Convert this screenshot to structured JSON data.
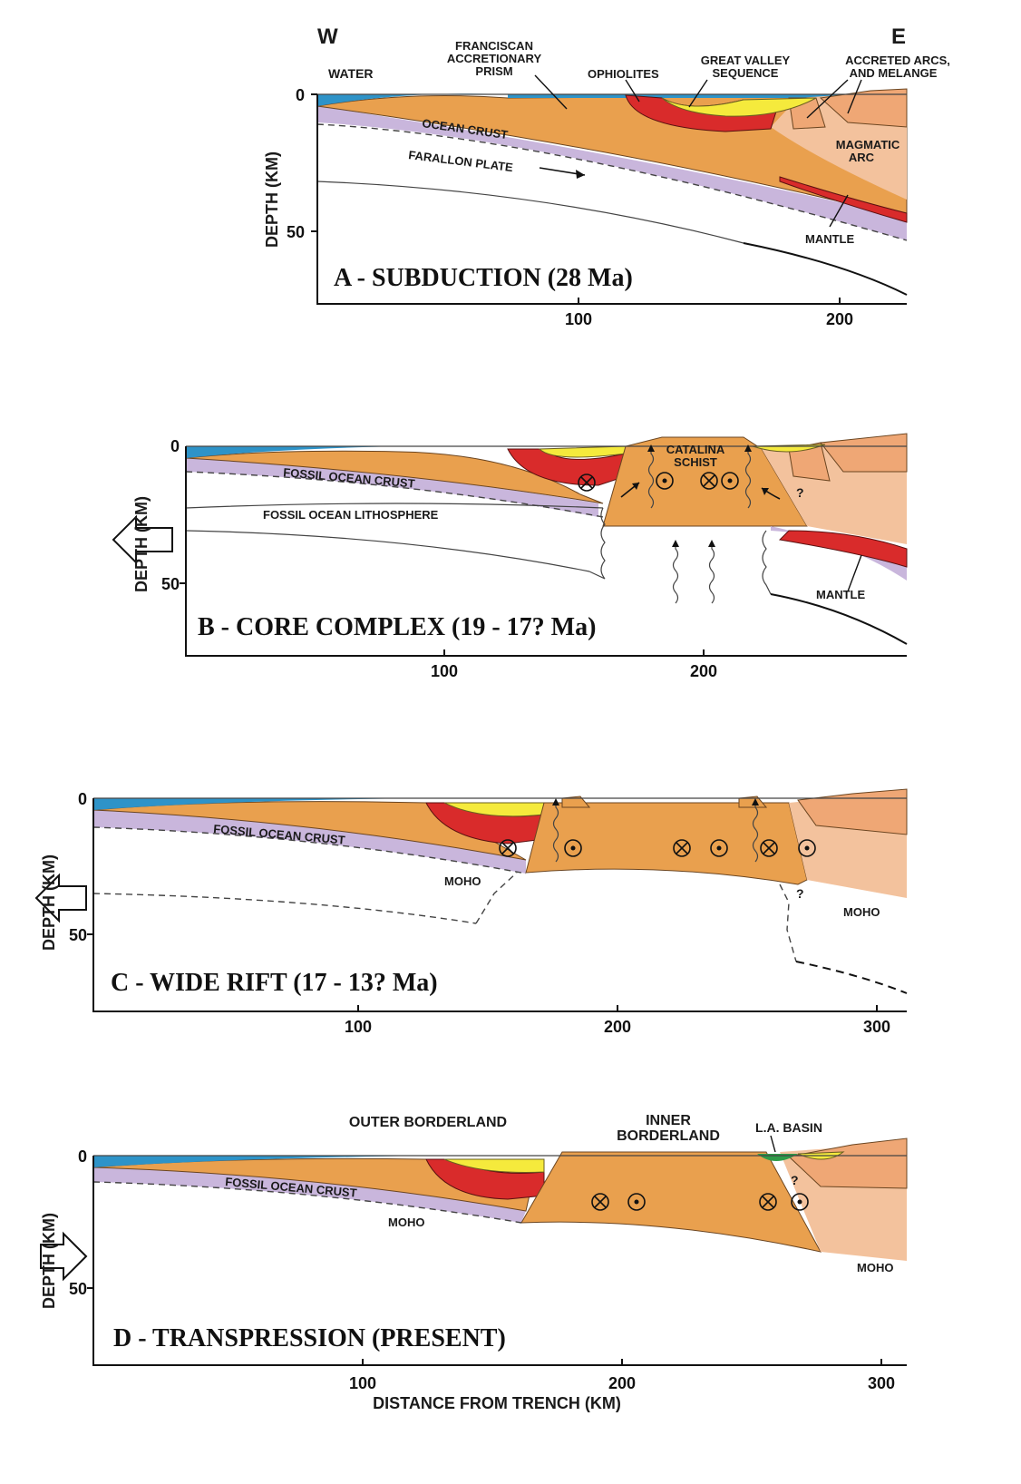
{
  "compass": {
    "west": "W",
    "east": "E"
  },
  "depth_axis_label": "DEPTH (KM)",
  "x_axis_title": "DISTANCE FROM TRENCH (KM)",
  "panels": [
    {
      "title": "A - SUBDUCTION (28 Ma)",
      "y_ticks": [
        "0",
        "50"
      ],
      "x_ticks": [
        "100",
        "200"
      ],
      "labels": {
        "water": "WATER",
        "franciscan": [
          "FRANCISCAN",
          "ACCRETIONARY",
          "PRISM"
        ],
        "ophiolites": "OPHIOLITES",
        "great_valley": [
          "GREAT VALLEY",
          "SEQUENCE"
        ],
        "accreted": [
          "ACCRETED ARCS,",
          "AND MELANGE"
        ],
        "ocean_crust": "OCEAN CRUST",
        "farallon": "FARALLON PLATE",
        "magmatic_arc": [
          "MAGMATIC",
          "ARC"
        ],
        "mantle": "MANTLE"
      }
    },
    {
      "title": "B - CORE COMPLEX (19 - 17? Ma)",
      "y_ticks": [
        "0",
        "50"
      ],
      "x_ticks": [
        "100",
        "200"
      ],
      "labels": {
        "catalina": [
          "CATALINA",
          "SCHIST"
        ],
        "fossil_crust": "FOSSIL OCEAN CRUST",
        "fossil_litho": "FOSSIL OCEAN LITHOSPHERE",
        "question": "?",
        "mantle": "MANTLE"
      }
    },
    {
      "title": "C - WIDE RIFT (17 - 13? Ma)",
      "y_ticks": [
        "0",
        "50"
      ],
      "x_ticks": [
        "100",
        "200",
        "300"
      ],
      "labels": {
        "fossil_crust": "FOSSIL OCEAN CRUST",
        "moho_left": "MOHO",
        "moho_right": "MOHO",
        "question": "?"
      }
    },
    {
      "title": "D - TRANSPRESSION (PRESENT)",
      "y_ticks": [
        "0",
        "50"
      ],
      "x_ticks": [
        "100",
        "200",
        "300"
      ],
      "labels": {
        "outer": "OUTER BORDERLAND",
        "inner": [
          "INNER",
          "BORDERLAND"
        ],
        "la_basin": "L.A. BASIN",
        "fossil_crust": "FOSSIL OCEAN CRUST",
        "moho_left": "MOHO",
        "moho_right": "MOHO",
        "question": "?"
      }
    }
  ]
}
